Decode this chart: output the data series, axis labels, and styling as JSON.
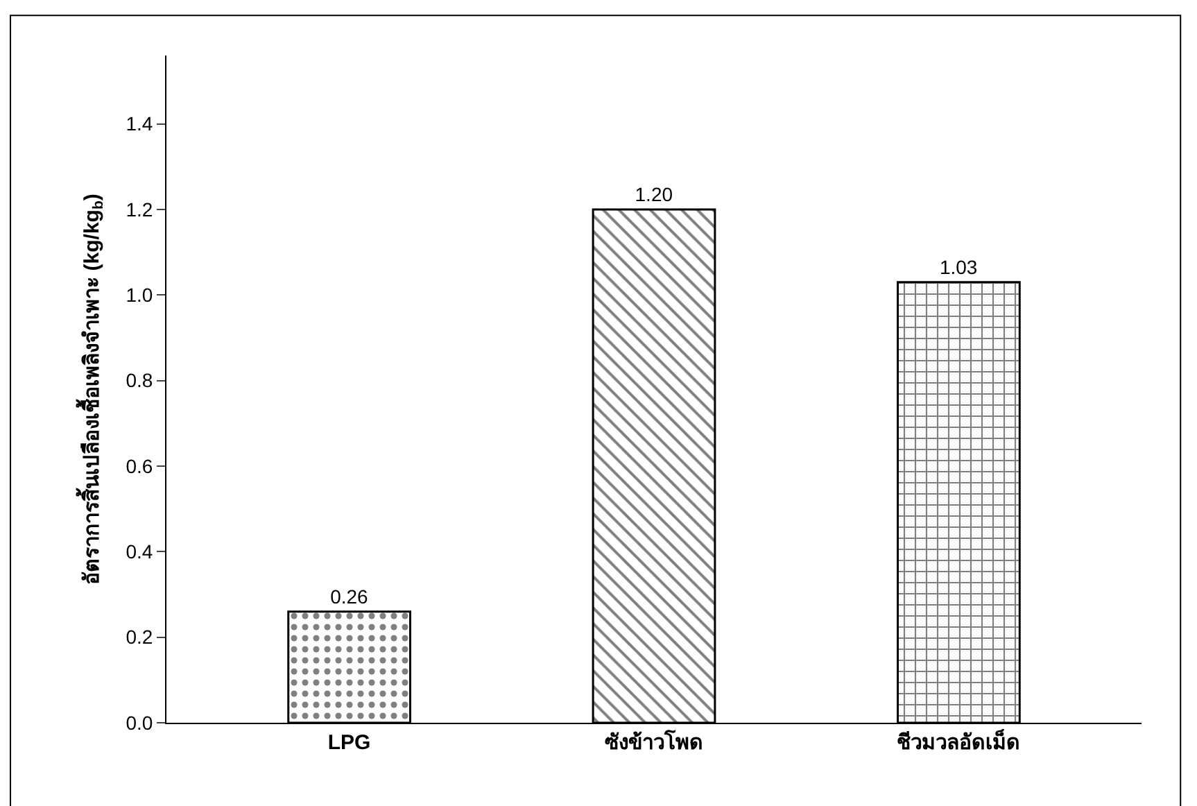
{
  "chart_data": {
    "type": "bar",
    "ylabel": "อัตราการสิ้นเปลืองเชื้อเพลิงจำเพาะ (kg/kg$_{b}$)",
    "categories": [
      "LPG",
      "ซังข้าวโพด",
      "ชีวมวลอัดเม็ด"
    ],
    "values": [
      0.26,
      1.2,
      1.03
    ],
    "colors": [
      "#000000",
      "#000000",
      "#000000"
    ],
    "ylim": [
      0,
      1.56
    ],
    "yticks": [
      {
        "value": 0,
        "label": "0.0"
      },
      {
        "value": 0.2,
        "label": "0.2"
      },
      {
        "value": 0.4,
        "label": "0.4"
      },
      {
        "value": 0.6,
        "label": "0.6"
      },
      {
        "value": 0.8,
        "label": "0.8"
      },
      {
        "value": 1.0,
        "label": "1.0"
      },
      {
        "value": 1.2,
        "label": "1.2"
      },
      {
        "value": 1.4,
        "label": "1.4"
      }
    ],
    "value_labels": [
      "0.26",
      "1.20",
      "1.03"
    ]
  }
}
